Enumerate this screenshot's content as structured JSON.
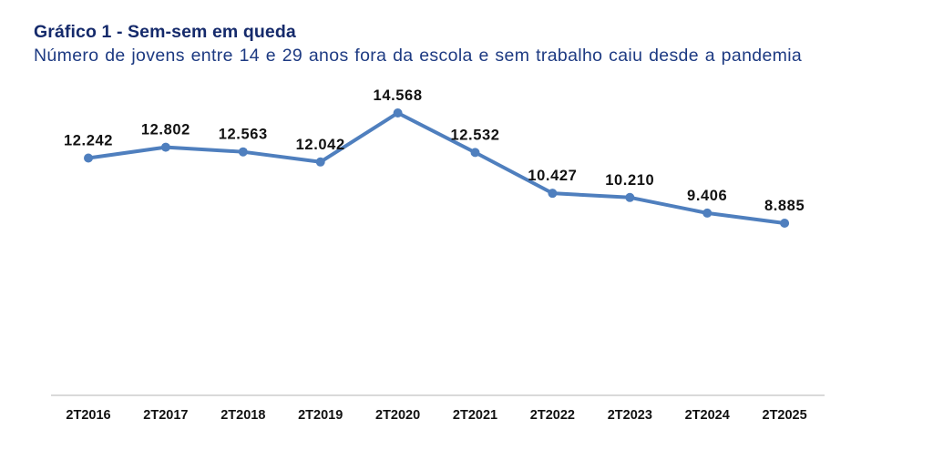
{
  "header": {
    "title": "Gráfico 1 - Sem-sem em queda",
    "subtitle": "Número de jovens entre 14 e 29 anos fora da escola e sem trabalho caiu desde a pandemia"
  },
  "colors": {
    "line": "#4f7fbe",
    "title": "#152a6b",
    "subtitle": "#1d3a82",
    "axis": "#d9d9d9",
    "text": "#111111"
  },
  "chart_data": {
    "type": "line",
    "title": "Gráfico 1 - Sem-sem em queda",
    "subtitle": "Número de jovens entre 14 e 29 anos fora da escola e sem trabalho caiu desde a pandemia",
    "xlabel": "",
    "ylabel": "",
    "categories": [
      "2T2016",
      "2T2017",
      "2T2018",
      "2T2019",
      "2T2020",
      "2T2021",
      "2T2022",
      "2T2023",
      "2T2024",
      "2T2025"
    ],
    "values": [
      12242,
      12802,
      12563,
      12042,
      14568,
      12532,
      10427,
      10210,
      9406,
      8885
    ],
    "value_labels": [
      "12.242",
      "12.802",
      "12.563",
      "12.042",
      "14.568",
      "12.532",
      "10.427",
      "10.210",
      "9.406",
      "8.885"
    ],
    "grid": false,
    "legend": null,
    "y_axis_visible": false
  }
}
